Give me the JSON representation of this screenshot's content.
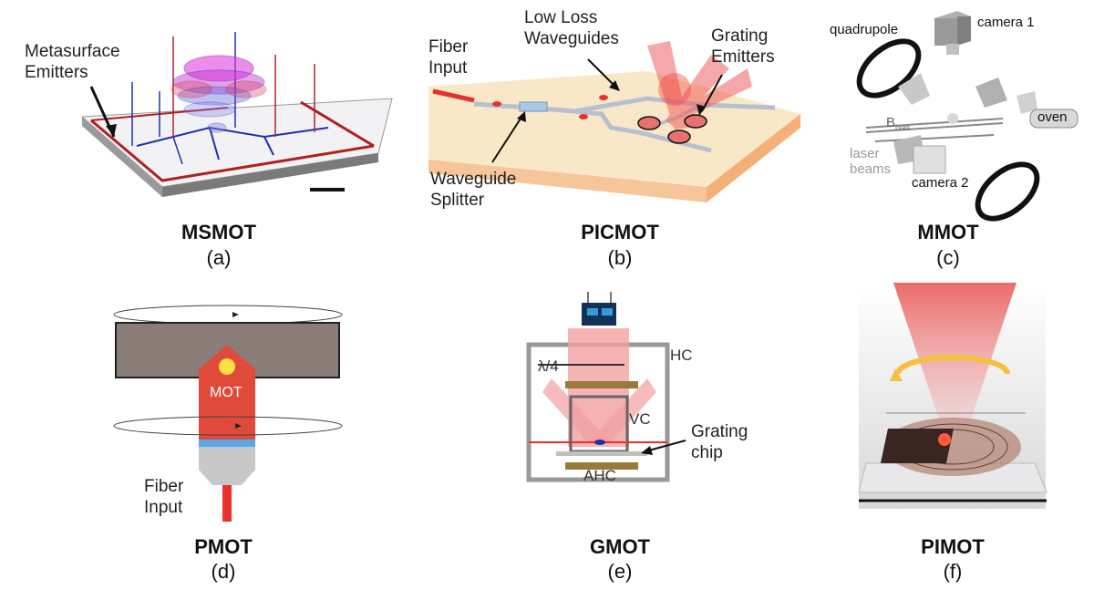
{
  "panels": [
    {
      "key": "a",
      "title": "MSMOT",
      "sub": "(a)",
      "labels": {
        "emitters_1": "Metasurface",
        "emitters_2": "Emitters"
      }
    },
    {
      "key": "b",
      "title": "PICMOT",
      "sub": "(b)",
      "labels": {
        "fiber_1": "Fiber",
        "fiber_2": "Input",
        "waveguides_1": "Low Loss",
        "waveguides_2": "Waveguides",
        "grating_1": "Grating",
        "grating_2": "Emitters",
        "splitter_1": "Waveguide",
        "splitter_2": "Splitter"
      }
    },
    {
      "key": "c",
      "title": "MMOT",
      "sub": "(c)",
      "labels": {
        "quadrupole": "quadrupole",
        "camera1": "camera 1",
        "oven": "oven",
        "bbias": "B",
        "bbias_sub": "bias",
        "laser_1": "laser",
        "laser_2": "beams",
        "camera2": "camera 2"
      }
    },
    {
      "key": "d",
      "title": "PMOT",
      "sub": "(d)",
      "labels": {
        "mot": "MOT",
        "fiber_1": "Fiber",
        "fiber_2": "Input"
      }
    },
    {
      "key": "e",
      "title": "GMOT",
      "sub": "(e)",
      "labels": {
        "hc": "HC",
        "lambda": "λ/4",
        "vc": "VC",
        "ahc": "AHC",
        "grating_1": "Grating",
        "grating_2": "chip"
      }
    },
    {
      "key": "f",
      "title": "PIMOT",
      "sub": "(f)",
      "labels": {}
    }
  ],
  "colors": {
    "laser_red": "#e8302e",
    "beam_pink": "#f2a0a0",
    "chip_tan": "#f8e8c8",
    "brown": "#8a7c76",
    "gray": "#c8c8c8"
  }
}
